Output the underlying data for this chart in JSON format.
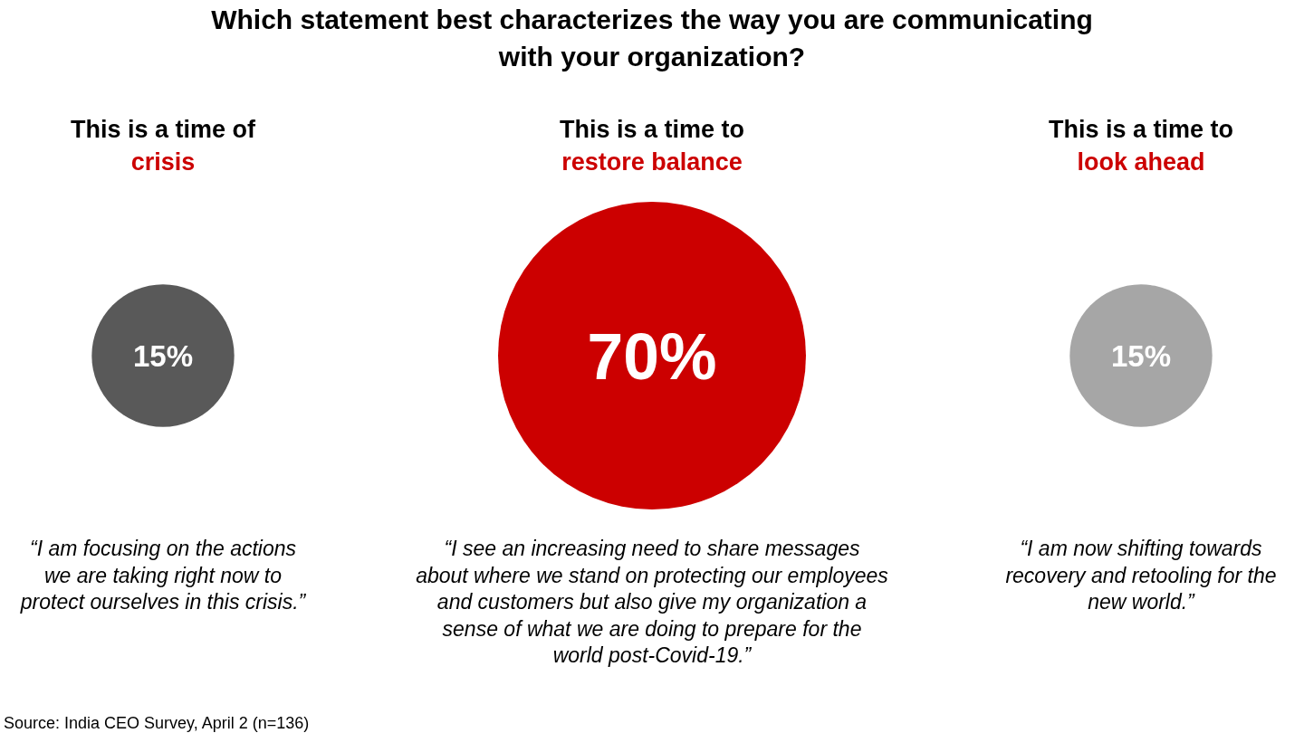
{
  "chart_data": {
    "type": "other",
    "title": "Which statement best characterizes the way you are communicating\nwith your organization?",
    "categories": [
      "This is a time of\ncrisis",
      "This is a time to\nrestore balance",
      "This is a time to\nlook ahead"
    ],
    "values": [
      15,
      70,
      15
    ],
    "colors": [
      "#595959",
      "#cc0000",
      "#a6a6a6"
    ],
    "value_labels": [
      "15%",
      "70%",
      "15%"
    ],
    "annotations": [
      "“I am focusing on the actions\nwe are taking right now to\nprotect ourselves in this crisis.”",
      "“I see an increasing need to share messages\nabout where we stand on protecting our employees\nand customers but also give my organization a\nsense of what we are doing to prepare for the\nworld post-Covid-19.”",
      "“I am now shifting towards\nrecovery and retooling for the\nnew world.”",
      "Source: India CEO Survey, April 2 (n=136)"
    ]
  }
}
